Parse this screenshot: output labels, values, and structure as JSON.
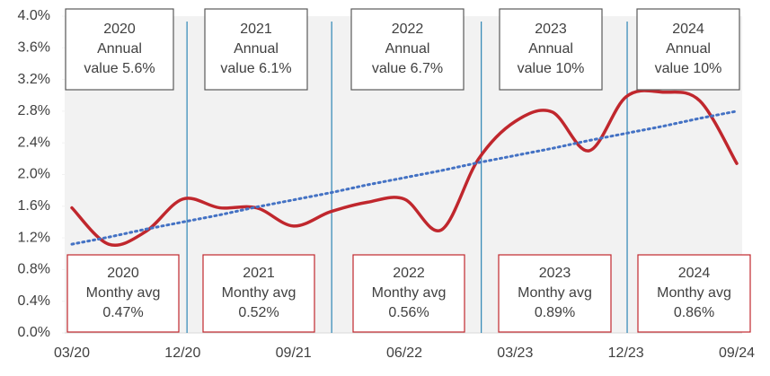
{
  "chart_data": {
    "type": "line",
    "categories": [
      "03/20",
      null,
      null,
      "12/20",
      null,
      null,
      "09/21",
      null,
      null,
      "06/22",
      null,
      null,
      "03/23",
      null,
      null,
      "12/23",
      null,
      null,
      "09/24"
    ],
    "series": [
      {
        "color": "#c0272d",
        "style": "solid",
        "values": [
          1.58,
          1.12,
          1.28,
          1.69,
          1.58,
          1.58,
          1.35,
          1.53,
          1.65,
          1.69,
          1.3,
          2.19,
          2.67,
          2.79,
          2.3,
          2.98,
          3.04,
          2.93,
          2.14
        ]
      },
      {
        "color": "#4472c4",
        "style": "dotted",
        "values": [
          1.12,
          1.21,
          1.31,
          1.4,
          1.49,
          1.59,
          1.68,
          1.77,
          1.87,
          1.96,
          2.05,
          2.15,
          2.24,
          2.33,
          2.43,
          2.52,
          2.61,
          2.71,
          2.8
        ]
      }
    ],
    "ylim": [
      0,
      4.0
    ],
    "yticks": [
      {
        "value": 0,
        "label": "0.0%"
      },
      {
        "value": 0.4,
        "label": "0.4%"
      },
      {
        "value": 0.8,
        "label": "0.8%"
      },
      {
        "value": 1.2,
        "label": "1.2%"
      },
      {
        "value": 1.6,
        "label": "1.6%"
      },
      {
        "value": 2.0,
        "label": "2.0%"
      },
      {
        "value": 2.4,
        "label": "2.4%"
      },
      {
        "value": 2.8,
        "label": "2.8%"
      },
      {
        "value": 3.2,
        "label": "3.2%"
      },
      {
        "value": 3.6,
        "label": "3.6%"
      },
      {
        "value": 4.0,
        "label": "4.0%"
      }
    ],
    "annotations": {
      "top": [
        {
          "lines": [
            "2020",
            "Annual",
            "value 5.6%"
          ]
        },
        {
          "lines": [
            "2021",
            "Annual",
            "value 6.1%"
          ]
        },
        {
          "lines": [
            "2022",
            "Annual",
            "value 6.7%"
          ]
        },
        {
          "lines": [
            "2023",
            "Annual",
            "value 10%"
          ]
        },
        {
          "lines": [
            "2024",
            "Annual",
            "value 10%"
          ]
        }
      ],
      "bottom": [
        {
          "lines": [
            "2020",
            "Monthy avg",
            "0.47%"
          ]
        },
        {
          "lines": [
            "2021",
            "Monthy avg",
            "0.52%"
          ]
        },
        {
          "lines": [
            "2022",
            "Monthy avg",
            "0.56%"
          ]
        },
        {
          "lines": [
            "2023",
            "Monthy avg",
            "0.89%"
          ]
        },
        {
          "lines": [
            "2024",
            "Monthy avg",
            "0.86%"
          ]
        }
      ]
    }
  }
}
